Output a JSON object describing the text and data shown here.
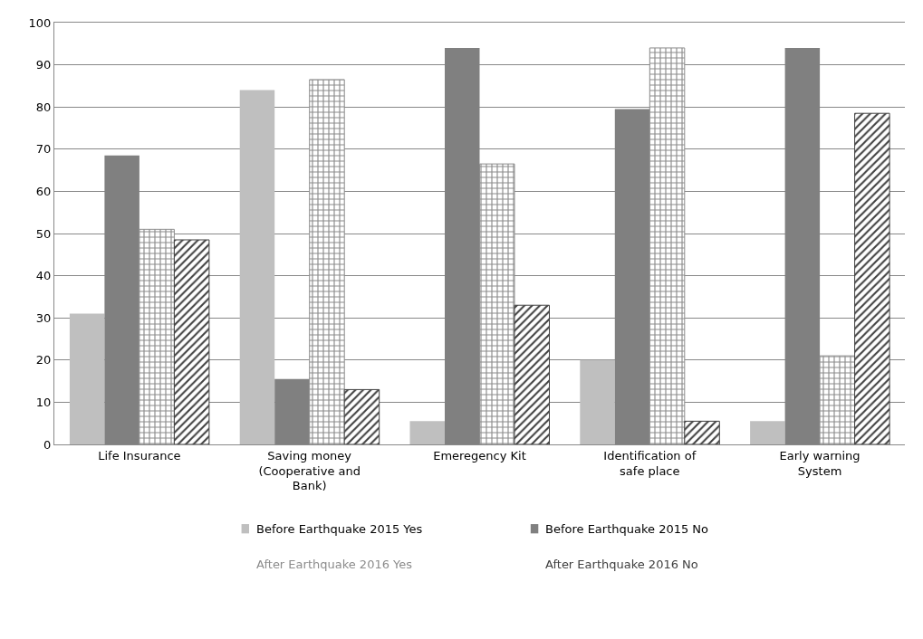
{
  "chart_data": {
    "type": "bar",
    "categories": [
      "Life Insurance",
      "Saving money (Cooperative and Bank)",
      "Emeregency Kit",
      "Identification of safe place",
      "Early warning System"
    ],
    "series": [
      {
        "name": "Before Earthquake 2015 Yes",
        "color": "#bfbfbf",
        "values": [
          31,
          84,
          5.5,
          20,
          5.5
        ]
      },
      {
        "name": "Before Earthquake 2015 No",
        "color": "#808080",
        "values": [
          68.5,
          15.5,
          94,
          79.5,
          94
        ]
      },
      {
        "name": "After Earthquake 2016 Yes",
        "color": "#8c8c8c",
        "values": [
          51,
          86.5,
          66.5,
          94,
          21
        ]
      },
      {
        "name": "After Earthquake 2016 No",
        "color": "#404040",
        "values": [
          48.5,
          13,
          33,
          5.5,
          78.5
        ]
      }
    ],
    "ylim": [
      0,
      100
    ],
    "yticks": [
      0,
      10,
      20,
      30,
      40,
      50,
      60,
      70,
      80,
      90,
      100
    ],
    "grid": "y",
    "legend": "bottom"
  }
}
